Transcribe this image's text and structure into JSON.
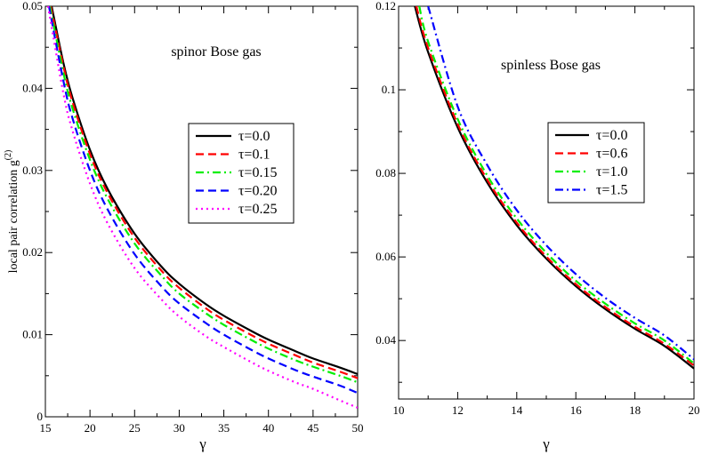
{
  "chart_data": [
    {
      "type": "line",
      "title": "spinor Bose gas",
      "xlabel": "γ",
      "ylabel": "local pair correlation g",
      "ylabel_superscript": "(2)",
      "xlim": [
        15,
        50
      ],
      "ylim": [
        0,
        0.05
      ],
      "xticks": [
        15,
        20,
        25,
        30,
        35,
        40,
        45,
        50
      ],
      "xtick_labels": [
        "15",
        "20",
        "25",
        "30",
        "35",
        "40",
        "45",
        "50"
      ],
      "yticks": [
        0,
        0.01,
        0.02,
        0.03,
        0.04,
        0.05
      ],
      "ytick_labels": [
        "0",
        "0.01",
        "0.02",
        "0.03",
        "0.04",
        "0.05"
      ],
      "legend_position": "center-right",
      "series": [
        {
          "name": "τ=0.0",
          "color": "#000000",
          "dash": "solid",
          "x": [
            15.7,
            17,
            18,
            20,
            22,
            25,
            28,
            30,
            33,
            35,
            38,
            40,
            43,
            45,
            48,
            50
          ],
          "values": [
            0.05,
            0.0432,
            0.039,
            0.0325,
            0.0277,
            0.0223,
            0.0183,
            0.0162,
            0.0137,
            0.0123,
            0.0105,
            0.0094,
            0.008,
            0.0071,
            0.006,
            0.0052
          ]
        },
        {
          "name": "τ=0.1",
          "color": "#ff0000",
          "dash": "dashed",
          "x": [
            15.6,
            17,
            18,
            20,
            22,
            25,
            28,
            30,
            33,
            35,
            38,
            40,
            43,
            45,
            48,
            50
          ],
          "values": [
            0.05,
            0.0428,
            0.0385,
            0.032,
            0.0272,
            0.0218,
            0.0178,
            0.0157,
            0.0132,
            0.0118,
            0.01,
            0.0089,
            0.0075,
            0.0066,
            0.0055,
            0.0047
          ]
        },
        {
          "name": "τ=0.15",
          "color": "#00ee00",
          "dash": "dashdot",
          "x": [
            15.5,
            17,
            18,
            20,
            22,
            25,
            28,
            30,
            33,
            35,
            38,
            40,
            43,
            45,
            48,
            50
          ],
          "values": [
            0.05,
            0.042,
            0.0377,
            0.0313,
            0.0265,
            0.0211,
            0.0172,
            0.015,
            0.0126,
            0.0112,
            0.0094,
            0.0083,
            0.0069,
            0.0061,
            0.005,
            0.0042
          ]
        },
        {
          "name": "τ=0.20",
          "color": "#0000ff",
          "dash": "dashed",
          "x": [
            15.4,
            17,
            18,
            20,
            22,
            25,
            28,
            30,
            33,
            35,
            38,
            40,
            43,
            45,
            48,
            50
          ],
          "values": [
            0.05,
            0.041,
            0.0365,
            0.03,
            0.0252,
            0.0198,
            0.0159,
            0.0138,
            0.0114,
            0.01,
            0.0082,
            0.0071,
            0.0057,
            0.0049,
            0.0038,
            0.0029
          ]
        },
        {
          "name": "τ=0.25",
          "color": "#ff00ff",
          "dash": "dotted",
          "x": [
            15.3,
            17,
            18,
            20,
            22,
            25,
            28,
            30,
            33,
            35,
            38,
            40,
            43,
            45,
            48,
            50
          ],
          "values": [
            0.05,
            0.0395,
            0.035,
            0.0284,
            0.0235,
            0.0181,
            0.0143,
            0.0122,
            0.0098,
            0.0085,
            0.0067,
            0.0056,
            0.0042,
            0.0034,
            0.002,
            0.0011
          ]
        }
      ]
    },
    {
      "type": "line",
      "title": "spinless Bose gas",
      "xlabel": "γ",
      "ylabel": "",
      "xlim": [
        10,
        20
      ],
      "ylim": [
        0.026,
        0.12
      ],
      "xticks": [
        10,
        12,
        14,
        16,
        18,
        20
      ],
      "xtick_labels": [
        "10",
        "12",
        "14",
        "16",
        "18",
        "20"
      ],
      "yticks": [
        0.04,
        0.06,
        0.08,
        0.1,
        0.12
      ],
      "ytick_labels": [
        "0.04",
        "0.06",
        "0.08",
        "0.1",
        "0.12"
      ],
      "legend_position": "upper-right",
      "series": [
        {
          "name": "τ=0.0",
          "color": "#000000",
          "dash": "solid",
          "x": [
            10.55,
            11,
            12,
            13,
            14,
            15,
            16,
            17,
            18,
            19,
            20
          ],
          "values": [
            0.12,
            0.109,
            0.091,
            0.0778,
            0.0676,
            0.0596,
            0.053,
            0.0475,
            0.0428,
            0.0387,
            0.0333
          ]
        },
        {
          "name": "τ=0.6",
          "color": "#ff0000",
          "dash": "dashed",
          "x": [
            10.6,
            11,
            12,
            13,
            14,
            15,
            16,
            17,
            18,
            19,
            20
          ],
          "values": [
            0.12,
            0.11,
            0.0918,
            0.0785,
            0.0682,
            0.0601,
            0.0535,
            0.048,
            0.0433,
            0.0392,
            0.034
          ]
        },
        {
          "name": "τ=1.0",
          "color": "#00ee00",
          "dash": "dashdot",
          "x": [
            10.7,
            11,
            12,
            13,
            14,
            15,
            16,
            17,
            18,
            19,
            20
          ],
          "values": [
            0.12,
            0.1115,
            0.093,
            0.0795,
            0.0692,
            0.061,
            0.0543,
            0.0488,
            0.0441,
            0.04,
            0.0345
          ]
        },
        {
          "name": "τ=1.5",
          "color": "#0000ff",
          "dash": "dashdot",
          "x": [
            11.0,
            12,
            13,
            14,
            15,
            16,
            17,
            18,
            19,
            20
          ],
          "values": [
            0.12,
            0.096,
            0.082,
            0.0712,
            0.0628,
            0.0559,
            0.0502,
            0.0454,
            0.0412,
            0.0355
          ]
        }
      ]
    }
  ]
}
